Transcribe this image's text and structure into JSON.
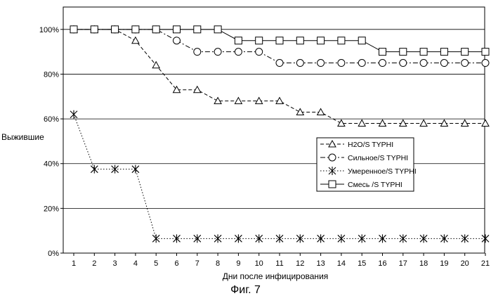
{
  "caption": "Фиг. 7",
  "chart_data": {
    "type": "line",
    "title": "",
    "xlabel": "Дни после инфицирования",
    "ylabel": "Выжившие",
    "x": [
      1,
      2,
      3,
      4,
      5,
      6,
      7,
      8,
      9,
      10,
      11,
      12,
      13,
      14,
      15,
      16,
      17,
      18,
      19,
      20,
      21
    ],
    "x_ticks": [
      "1",
      "2",
      "3",
      "4",
      "5",
      "6",
      "7",
      "8",
      "9",
      "10",
      "11",
      "12",
      "13",
      "14",
      "15",
      "16",
      "17",
      "18",
      "19",
      "20",
      "21"
    ],
    "y_ticks": [
      "0%",
      "20%",
      "40%",
      "60%",
      "80%",
      "100%"
    ],
    "y_tick_values": [
      0,
      20,
      40,
      60,
      80,
      100
    ],
    "ylim": [
      0,
      110
    ],
    "grid": "horizontal",
    "legend_position": "right",
    "series": [
      {
        "name": "H2O/S TYPHI",
        "marker": "triangle",
        "dash": "dashed",
        "values": [
          100,
          100,
          100,
          95,
          84,
          73,
          73,
          68,
          68,
          68,
          68,
          63,
          63,
          58,
          58,
          58,
          58,
          58,
          58,
          58,
          58
        ]
      },
      {
        "name": "Сильное/S TYPHI",
        "marker": "circle",
        "dash": "dashdot",
        "values": [
          100,
          100,
          100,
          100,
          100,
          95,
          90,
          90,
          90,
          90,
          85,
          85,
          85,
          85,
          85,
          85,
          85,
          85,
          85,
          85,
          85
        ]
      },
      {
        "name": "Умеренное/S TYPHI",
        "marker": "star",
        "dash": "dotted",
        "values": [
          62,
          37.5,
          37.5,
          37.5,
          6.5,
          6.5,
          6.5,
          6.5,
          6.5,
          6.5,
          6.5,
          6.5,
          6.5,
          6.5,
          6.5,
          6.5,
          6.5,
          6.5,
          6.5,
          6.5,
          6.5
        ]
      },
      {
        "name": "Смесь /S TYPHI",
        "marker": "square",
        "dash": "solid",
        "values": [
          100,
          100,
          100,
          100,
          100,
          100,
          100,
          100,
          95,
          95,
          95,
          95,
          95,
          95,
          95,
          90,
          90,
          90,
          90,
          90,
          90
        ]
      }
    ]
  }
}
